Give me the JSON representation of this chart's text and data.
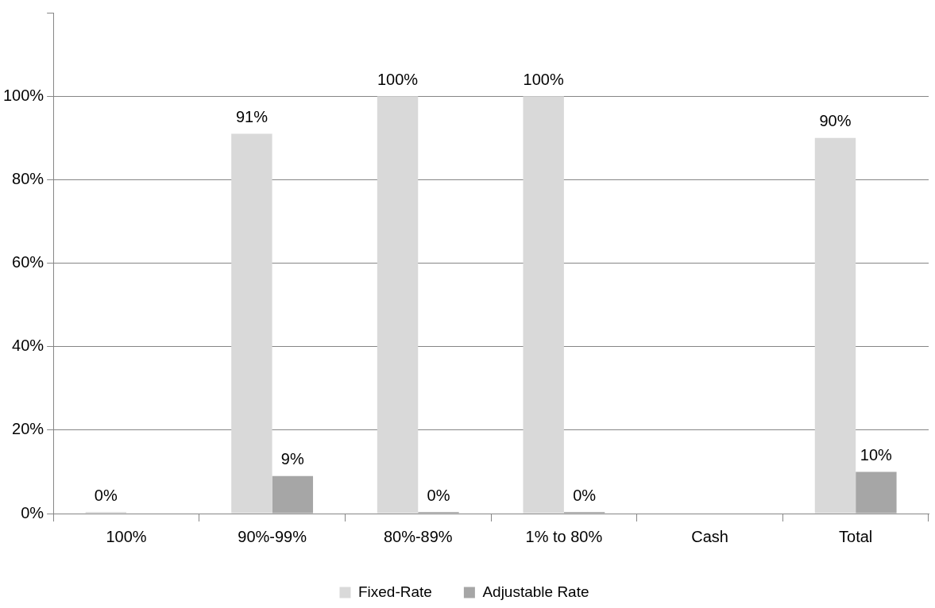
{
  "chart_data": {
    "type": "bar",
    "categories": [
      "100%",
      "90%-99%",
      "80%-89%",
      "1% to 80%",
      "Cash",
      "Total"
    ],
    "series": [
      {
        "name": "Fixed-Rate",
        "color": "#d9d9d9",
        "values": [
          0,
          91,
          100,
          100,
          null,
          90
        ],
        "value_labels": [
          "0%",
          "91%",
          "100%",
          "100%",
          null,
          "90%"
        ]
      },
      {
        "name": "Adjustable Rate",
        "color": "#a6a6a6",
        "values": [
          null,
          9,
          0,
          0,
          null,
          10
        ],
        "value_labels": [
          null,
          "9%",
          "0%",
          "0%",
          null,
          "10%"
        ]
      }
    ],
    "ylim": [
      0,
      120
    ],
    "yticks": [
      {
        "value": 0,
        "label": "0%"
      },
      {
        "value": 20,
        "label": "20%"
      },
      {
        "value": 40,
        "label": "40%"
      },
      {
        "value": 60,
        "label": "60%"
      },
      {
        "value": 80,
        "label": "80%"
      },
      {
        "value": 100,
        "label": "100%"
      },
      {
        "value": 120,
        "label": null
      }
    ],
    "grid": "y",
    "legend": "bottom"
  }
}
